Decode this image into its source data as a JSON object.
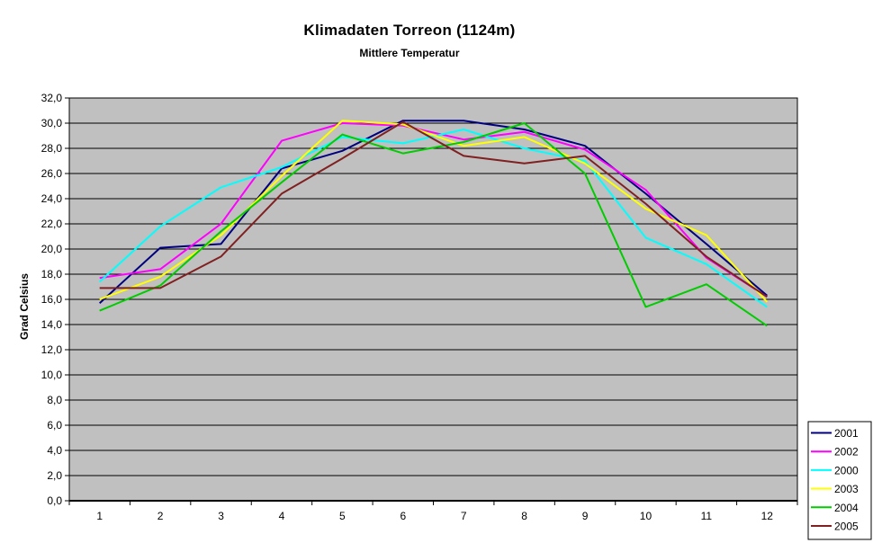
{
  "chart_data": {
    "type": "line",
    "title": "Klimadaten Torreon (1124m)",
    "subtitle": "Mittlere Temperatur",
    "ylabel": "Grad Celsius",
    "xlabel": "",
    "ylim": [
      0,
      32
    ],
    "ytick_step": 2,
    "ytick_labels": [
      "0,0",
      "2,0",
      "4,0",
      "6,0",
      "8,0",
      "10,0",
      "12,0",
      "14,0",
      "16,0",
      "18,0",
      "20,0",
      "22,0",
      "24,0",
      "26,0",
      "28,0",
      "30,0",
      "32,0"
    ],
    "categories": [
      "1",
      "2",
      "3",
      "4",
      "5",
      "6",
      "7",
      "8",
      "9",
      "10",
      "11",
      "12"
    ],
    "grid": true,
    "plot_background_color": "#C0C0C0",
    "gridline_color": "#000000",
    "axis_color": "#000000",
    "legend_position": "right-bottom",
    "legend_background_color": "#FFFFFF",
    "legend_border_color": "#000000",
    "series": [
      {
        "name": "2001",
        "color": "#000080",
        "values": [
          15.7,
          20.1,
          20.4,
          26.4,
          27.8,
          30.2,
          30.2,
          29.5,
          28.2,
          24.4,
          20.4,
          16.3
        ]
      },
      {
        "name": "2002",
        "color": "#FF00FF",
        "values": [
          17.7,
          18.4,
          22.0,
          28.6,
          30.0,
          29.8,
          28.7,
          29.3,
          27.9,
          24.7,
          19.3,
          16.2
        ]
      },
      {
        "name": "2000",
        "color": "#00FFFF",
        "values": [
          17.4,
          21.8,
          24.9,
          26.5,
          28.9,
          28.4,
          29.5,
          28.0,
          27.0,
          20.9,
          18.8,
          15.4
        ]
      },
      {
        "name": "2003",
        "color": "#FFFF00",
        "values": [
          16.0,
          17.8,
          21.1,
          25.8,
          30.2,
          29.9,
          28.2,
          28.9,
          26.8,
          23.2,
          21.1,
          15.8
        ]
      },
      {
        "name": "2004",
        "color": "#00CC00",
        "values": [
          15.1,
          17.1,
          21.4,
          25.3,
          29.1,
          27.6,
          28.5,
          30.0,
          26.0,
          15.4,
          17.2,
          13.9
        ]
      },
      {
        "name": "2005",
        "color": "#802020",
        "values": [
          16.9,
          16.9,
          19.4,
          24.4,
          27.2,
          30.1,
          27.4,
          26.8,
          27.4,
          23.6,
          19.4,
          16.2
        ]
      }
    ]
  }
}
